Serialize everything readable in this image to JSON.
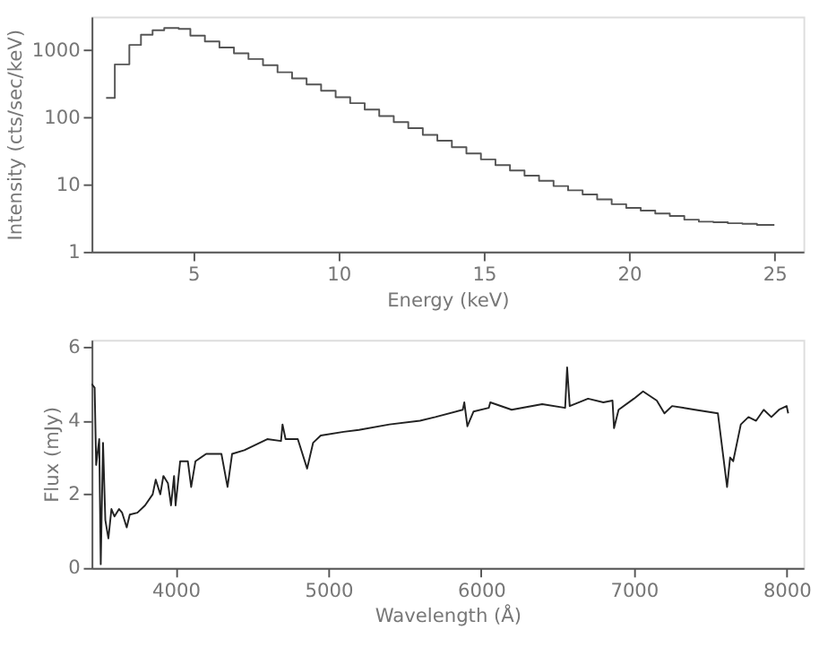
{
  "chart_data": [
    {
      "type": "step",
      "xlabel": "Energy (keV)",
      "ylabel": "Intensity (cts/sec/keV)",
      "log": true,
      "color": "#555555",
      "x": [
        2.0,
        2.3,
        2.8,
        3.2,
        3.6,
        4.0,
        4.5,
        4.9,
        5.4,
        5.9,
        6.4,
        6.9,
        7.4,
        7.9,
        8.4,
        8.9,
        9.4,
        9.9,
        10.4,
        10.9,
        11.4,
        11.9,
        12.4,
        12.9,
        13.4,
        13.9,
        14.4,
        14.9,
        15.4,
        15.9,
        16.4,
        16.9,
        17.4,
        17.9,
        18.4,
        18.9,
        19.4,
        19.9,
        20.4,
        20.9,
        21.4,
        21.9,
        22.4,
        22.9,
        23.4,
        23.9,
        24.4,
        25.0
      ],
      "values": [
        195,
        616,
        1200,
        1700,
        1990,
        2150,
        2080,
        1650,
        1350,
        1100,
        900,
        740,
        600,
        470,
        380,
        310,
        250,
        200,
        163,
        131,
        105,
        85,
        69,
        55,
        45,
        36,
        29,
        23.7,
        19.5,
        16.2,
        13.6,
        11.4,
        9.5,
        8.2,
        7.1,
        6.0,
        5.1,
        4.5,
        4.1,
        3.7,
        3.4,
        3.0,
        2.8,
        2.75,
        2.65,
        2.6,
        2.5,
        2.5
      ],
      "xlim": [
        1.5,
        26
      ],
      "ylim": [
        1,
        3162
      ],
      "xticks": [
        5,
        10,
        15,
        20,
        25
      ],
      "yticks": [
        1,
        10,
        100,
        1000
      ]
    },
    {
      "type": "line",
      "xlabel": "Wavelength (Å)",
      "ylabel": "Flux (mJy)",
      "color": "#222222",
      "x": [
        3450,
        3470,
        3480,
        3500,
        3510,
        3525,
        3540,
        3560,
        3580,
        3600,
        3630,
        3650,
        3680,
        3700,
        3750,
        3800,
        3850,
        3870,
        3900,
        3920,
        3950,
        3970,
        3990,
        4000,
        4030,
        4080,
        4102,
        4130,
        4200,
        4300,
        4340,
        4370,
        4450,
        4600,
        4690,
        4700,
        4720,
        4800,
        4861,
        4900,
        4950,
        5100,
        5200,
        5400,
        5600,
        5700,
        5880,
        5890,
        5910,
        5950,
        6050,
        6060,
        6200,
        6400,
        6550,
        6563,
        6580,
        6700,
        6800,
        6860,
        6870,
        6900,
        7000,
        7060,
        7150,
        7200,
        7250,
        7400,
        7550,
        7610,
        7630,
        7650,
        7700,
        7750,
        7800,
        7850,
        7900,
        7950,
        8000,
        8010
      ],
      "values": [
        5.0,
        4.9,
        2.8,
        3.5,
        0.1,
        3.4,
        1.3,
        0.8,
        1.6,
        1.4,
        1.6,
        1.5,
        1.1,
        1.45,
        1.5,
        1.7,
        2.0,
        2.4,
        2.0,
        2.5,
        2.3,
        1.7,
        2.5,
        1.7,
        2.9,
        2.9,
        2.2,
        2.9,
        3.1,
        3.1,
        2.2,
        3.1,
        3.2,
        3.5,
        3.45,
        3.9,
        3.5,
        3.5,
        2.7,
        3.4,
        3.6,
        3.7,
        3.75,
        3.9,
        4.0,
        4.1,
        4.3,
        4.5,
        3.85,
        4.25,
        4.35,
        4.5,
        4.3,
        4.45,
        4.35,
        5.45,
        4.4,
        4.6,
        4.5,
        4.55,
        3.8,
        4.3,
        4.6,
        4.8,
        4.55,
        4.2,
        4.4,
        4.3,
        4.2,
        2.2,
        3.0,
        2.9,
        3.9,
        4.1,
        4.0,
        4.3,
        4.1,
        4.3,
        4.4,
        4.2
      ],
      "xlim": [
        3450,
        8110
      ],
      "ylim": [
        0,
        6.2
      ],
      "xticks": [
        4000,
        5000,
        6000,
        7000,
        8000
      ],
      "yticks": [
        0,
        2,
        4,
        6
      ]
    }
  ]
}
